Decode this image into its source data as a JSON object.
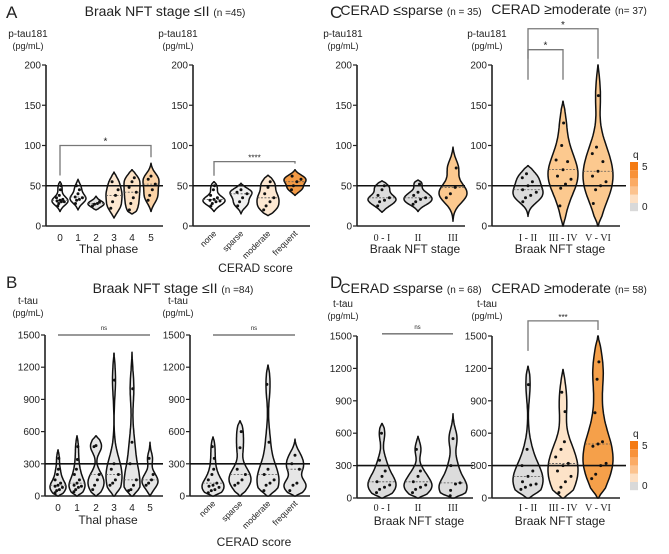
{
  "figure": {
    "panel_letters": [
      "A",
      "B",
      "C",
      "D"
    ],
    "titles": {
      "A": {
        "main": "Braak NFT stage ≤II",
        "n": "(n =45)"
      },
      "B": {
        "main": "Braak NFT stage ≤II",
        "n": "(n =84)"
      },
      "C_left": {
        "main": "CERAD ≤sparse",
        "n": "(n = 35)"
      },
      "C_right": {
        "main": "CERAD ≥moderate",
        "n": "(n= 37)"
      },
      "D_left": {
        "main": "CERAD ≤sparse",
        "n": "(n = 68)"
      },
      "D_right": {
        "main": "CERAD ≥moderate",
        "n": "(n= 58)"
      }
    },
    "legend": {
      "title": "q",
      "max_label": "5",
      "min_label": "0",
      "colors": [
        "#f47a12",
        "#f8923a",
        "#fbab65",
        "#fcc38f",
        "#fde0c4",
        "#d9d9d9"
      ]
    }
  },
  "chart_data": [
    {
      "id": "A1",
      "type": "violin",
      "ylabel": [
        "p-tau181",
        "(pg/mL)"
      ],
      "xlabel": "Thal phase",
      "ylim": [
        0,
        200
      ],
      "yticks": [
        0,
        50,
        100,
        150,
        200
      ],
      "threshold": 50,
      "rotated_ticks": false,
      "violins": [
        {
          "category": "0",
          "fill": "#ffffff",
          "min": 18,
          "max": 55,
          "points": [
            25,
            28,
            30,
            30,
            31,
            32,
            33,
            35,
            38,
            45,
            50
          ]
        },
        {
          "category": "1",
          "fill": "#fbfbfb",
          "min": 20,
          "max": 58,
          "points": [
            28,
            32,
            33,
            35,
            36,
            40,
            45,
            50
          ]
        },
        {
          "category": "2",
          "fill": "#e2e2e2",
          "min": 20,
          "max": 37,
          "points": [
            25,
            27,
            28,
            30
          ]
        },
        {
          "category": "3",
          "fill": "#fde8d2",
          "min": 10,
          "max": 67,
          "points": [
            22,
            30,
            38,
            45,
            55
          ]
        },
        {
          "category": "4",
          "fill": "#fde3c6",
          "min": 15,
          "max": 70,
          "points": [
            20,
            28,
            35,
            42,
            48,
            55,
            60
          ]
        },
        {
          "category": "5",
          "fill": "#fcd3a6",
          "min": 18,
          "max": 78,
          "points": [
            32,
            38,
            45,
            52,
            58,
            62
          ]
        }
      ],
      "comparisons": [
        {
          "from": 0,
          "to": 5,
          "y": 100,
          "label": "*",
          "style": "bracket"
        }
      ]
    },
    {
      "id": "A2",
      "type": "violin",
      "ylabel": [
        "p-tau181",
        "(pg/mL)"
      ],
      "xlabel": "CERAD score",
      "ylim": [
        0,
        200
      ],
      "yticks": [
        0,
        50,
        100,
        150,
        200
      ],
      "threshold": 50,
      "rotated_ticks": true,
      "violins": [
        {
          "category": "none",
          "fill": "#ffffff",
          "min": 18,
          "max": 55,
          "points": [
            25,
            28,
            30,
            31,
            32,
            33,
            35,
            38,
            45,
            50
          ]
        },
        {
          "category": "sparse",
          "fill": "#efefef",
          "min": 15,
          "max": 53,
          "points": [
            25,
            30,
            35,
            40,
            42,
            45
          ]
        },
        {
          "category": "moderate",
          "fill": "#fde8d2",
          "min": 13,
          "max": 63,
          "points": [
            20,
            25,
            30,
            35,
            40,
            48,
            55
          ]
        },
        {
          "category": "frequent",
          "fill": "#f39a45",
          "min": 38,
          "max": 70,
          "points": [
            45,
            50,
            55,
            58,
            62
          ]
        }
      ],
      "comparisons": [
        {
          "from": 0,
          "to": 3,
          "y": 80,
          "label": "****",
          "style": "bracket"
        }
      ]
    },
    {
      "id": "C1",
      "type": "violin",
      "ylabel": [
        "p-tau181",
        "(pg/mL)"
      ],
      "xlabel": "Braak NFT stage",
      "ylim": [
        0,
        200
      ],
      "yticks": [
        0,
        50,
        100,
        150,
        200
      ],
      "threshold": 50,
      "rotated_ticks": false,
      "violins": [
        {
          "category": "0 - I",
          "fill": "#dcdcdc",
          "min": 17,
          "max": 56,
          "points": [
            25,
            30,
            32,
            35,
            38,
            45,
            50
          ]
        },
        {
          "category": "II",
          "fill": "#dcdcdc",
          "min": 18,
          "max": 57,
          "points": [
            27,
            30,
            33,
            35,
            38,
            42,
            52
          ]
        },
        {
          "category": "III",
          "fill": "#fcc98f",
          "min": 6,
          "max": 98,
          "points": [
            35,
            40,
            48,
            72
          ]
        }
      ],
      "comparisons": []
    },
    {
      "id": "C2",
      "type": "violin",
      "ylabel": [
        "p-tau181",
        "(pg/mL)"
      ],
      "xlabel": "Braak NFT stage",
      "ylim": [
        0,
        200
      ],
      "yticks": [
        0,
        50,
        100,
        150,
        200
      ],
      "threshold": 50,
      "rotated_ticks": false,
      "violins": [
        {
          "category": "I - II",
          "fill": "#dcdcdc",
          "min": 12,
          "max": 75,
          "points": [
            30,
            35,
            38,
            42,
            45,
            50,
            55,
            60,
            65
          ]
        },
        {
          "category": "III - IV",
          "fill": "#fcc98f",
          "min": 0,
          "max": 155,
          "points": [
            25,
            47,
            52,
            58,
            62,
            70,
            80,
            82,
            100,
            128
          ]
        },
        {
          "category": "V - VI",
          "fill": "#fcc98f",
          "min": 0,
          "max": 200,
          "points": [
            28,
            45,
            50,
            55,
            62,
            68,
            80,
            90,
            98,
            162
          ]
        }
      ],
      "comparisons": [
        {
          "from": 0,
          "to": 1,
          "y": 219,
          "label": "*",
          "style": "bracket"
        },
        {
          "from": 0,
          "to": 2,
          "y": 245,
          "label": "*",
          "style": "bracket"
        }
      ]
    },
    {
      "id": "B1",
      "type": "violin",
      "ylabel": [
        "t-tau",
        "(pg/mL)"
      ],
      "xlabel": "Thal phase",
      "ylim": [
        0,
        1500
      ],
      "yticks": [
        0,
        300,
        600,
        900,
        1200,
        1500
      ],
      "threshold": 300,
      "rotated_ticks": false,
      "violins": [
        {
          "category": "0",
          "fill": "#e6e6e6",
          "min": 0,
          "max": 430,
          "points": [
            30,
            50,
            60,
            80,
            90,
            100,
            120,
            150,
            200,
            250,
            350
          ]
        },
        {
          "category": "1",
          "fill": "#e6e6e6",
          "min": 0,
          "max": 560,
          "points": [
            40,
            60,
            80,
            90,
            100,
            120,
            150,
            200,
            250,
            340,
            460
          ]
        },
        {
          "category": "2",
          "fill": "#e6e6e6",
          "min": 0,
          "max": 560,
          "points": [
            60,
            100,
            150,
            200,
            460,
            470
          ]
        },
        {
          "category": "3",
          "fill": "#e6e6e6",
          "min": 0,
          "max": 1330,
          "points": [
            100,
            120,
            150,
            200,
            250,
            300,
            1080
          ]
        },
        {
          "category": "4",
          "fill": "#e6e6e6",
          "min": 0,
          "max": 1340,
          "points": [
            50,
            60,
            100,
            150,
            300,
            500,
            1000
          ]
        },
        {
          "category": "5",
          "fill": "#e6e6e6",
          "min": 0,
          "max": 500,
          "points": [
            100,
            120,
            150,
            200,
            350
          ]
        }
      ],
      "comparisons": [
        {
          "from": 0,
          "to": 5,
          "y": 1500,
          "label": "ns",
          "style": "line"
        }
      ]
    },
    {
      "id": "B2",
      "type": "violin",
      "ylabel": [
        "t-tau",
        "(pg/mL)"
      ],
      "xlabel": "CERAD score",
      "ylim": [
        0,
        1500
      ],
      "yticks": [
        0,
        300,
        600,
        900,
        1200,
        1500
      ],
      "threshold": 300,
      "rotated_ticks": true,
      "violins": [
        {
          "category": "none",
          "fill": "#e6e6e6",
          "min": 0,
          "max": 550,
          "points": [
            30,
            50,
            60,
            80,
            90,
            100,
            120,
            150,
            200,
            250,
            350,
            460
          ]
        },
        {
          "category": "sparse",
          "fill": "#e6e6e6",
          "min": 0,
          "max": 700,
          "points": [
            100,
            120,
            150,
            200,
            250,
            450,
            600
          ]
        },
        {
          "category": "moderate",
          "fill": "#e6e6e6",
          "min": 0,
          "max": 1220,
          "points": [
            50,
            100,
            120,
            150,
            200,
            250,
            500,
            1040
          ]
        },
        {
          "category": "frequent",
          "fill": "#e6e6e6",
          "min": 0,
          "max": 530,
          "points": [
            50,
            100,
            120,
            250,
            300,
            380
          ]
        }
      ],
      "comparisons": [
        {
          "from": 0,
          "to": 3,
          "y": 1500,
          "label": "ns",
          "style": "line"
        }
      ]
    },
    {
      "id": "D1",
      "type": "violin",
      "ylabel": [
        "t-tau",
        "(pg/mL)"
      ],
      "xlabel": "Braak NFT stage",
      "ylim": [
        0,
        1500
      ],
      "yticks": [
        0,
        300,
        600,
        900,
        1200,
        1500
      ],
      "threshold": 300,
      "rotated_ticks": false,
      "violins": [
        {
          "category": "0 - I",
          "fill": "#dcdcdc",
          "min": 0,
          "max": 690,
          "points": [
            50,
            80,
            100,
            120,
            150,
            200,
            250,
            350,
            600
          ]
        },
        {
          "category": "II",
          "fill": "#dcdcdc",
          "min": 0,
          "max": 570,
          "points": [
            50,
            80,
            100,
            120,
            150,
            200,
            250,
            450
          ]
        },
        {
          "category": "III",
          "fill": "#dcdcdc",
          "min": 0,
          "max": 780,
          "points": [
            20,
            70,
            130,
            140,
            300,
            550
          ]
        }
      ],
      "comparisons": [
        {
          "from": 0,
          "to": 2,
          "y": 1520,
          "label": "ns",
          "style": "line"
        }
      ]
    },
    {
      "id": "D2",
      "type": "violin",
      "ylabel": [
        "t-tau",
        "(pg/mL)"
      ],
      "xlabel": "Braak NFT stage",
      "ylim": [
        0,
        1500
      ],
      "yticks": [
        0,
        300,
        600,
        900,
        1200,
        1500
      ],
      "threshold": 300,
      "rotated_ticks": false,
      "violins": [
        {
          "category": "I - II",
          "fill": "#dcdcdc",
          "min": 0,
          "max": 1220,
          "points": [
            80,
            100,
            120,
            130,
            150,
            200,
            250,
            300,
            450,
            1050
          ]
        },
        {
          "category": "III - IV",
          "fill": "#fde3c8",
          "min": 0,
          "max": 1190,
          "points": [
            50,
            100,
            150,
            200,
            250,
            300,
            320,
            380,
            450,
            520,
            800,
            980
          ]
        },
        {
          "category": "V - VI",
          "fill": "#f5a04a",
          "min": 0,
          "max": 1500,
          "points": [
            180,
            220,
            300,
            320,
            480,
            500,
            520,
            790,
            1100,
            1260
          ]
        }
      ],
      "comparisons": [
        {
          "from": 0,
          "to": 2,
          "y": 1640,
          "label": "***",
          "style": "bracket"
        }
      ]
    }
  ]
}
